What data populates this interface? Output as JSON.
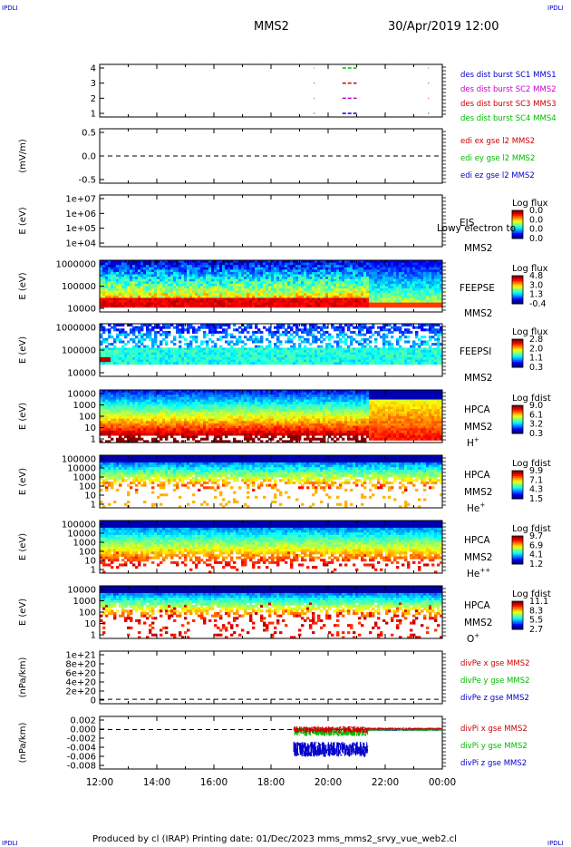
{
  "corner_labels": {
    "top_left": "IPDLI",
    "top_right": "IPDLI",
    "bottom_left": "IPDLI",
    "bottom_right": "IPDLI"
  },
  "header": {
    "mission": "MMS2",
    "datetime": "30/Apr/2019 12:00"
  },
  "footer": {
    "text": "Produced by cl (IRAP)    Printing date: 01/Dec/2023    mms_mms2_srvy_vue_web2.cl"
  },
  "time_axis": {
    "ticks": [
      "12:00",
      "14:00",
      "16:00",
      "18:00",
      "20:00",
      "22:00",
      "00:00"
    ]
  },
  "colors": {
    "blue": "#0000cc",
    "magenta": "#cc00cc",
    "red": "#cc0000",
    "green": "#00bb00"
  },
  "chart_data": [
    {
      "type": "line",
      "title": "des dist burst",
      "ylim": [
        0.5,
        4.5
      ],
      "yticks": [
        "4",
        "3",
        "2",
        "1"
      ],
      "legend": [
        {
          "text": "des dist burst SC1 MMS1",
          "color": "#0000cc"
        },
        {
          "text": "des dist burst SC2 MMS2",
          "color": "#cc00cc"
        },
        {
          "text": "des dist burst SC3 MMS3",
          "color": "#cc0000"
        },
        {
          "text": "des dist burst SC4 MMS4",
          "color": "#00bb00"
        }
      ],
      "series": [
        {
          "name": "des dist burst SC1 MMS1",
          "level": 1,
          "intervals": [
            [
              20.5,
              21.0
            ]
          ]
        },
        {
          "name": "des dist burst SC2 MMS2",
          "level": 2,
          "intervals": [
            [
              20.5,
              21.0
            ]
          ]
        },
        {
          "name": "des dist burst SC3 MMS3",
          "level": 3,
          "intervals": [
            [
              20.5,
              21.0
            ]
          ]
        },
        {
          "name": "des dist burst SC4 MMS4",
          "level": 4,
          "intervals": [
            [
              20.5,
              21.0
            ]
          ]
        }
      ]
    },
    {
      "type": "line",
      "ylabel": "(mV/m)",
      "ylim": [
        -1,
        1
      ],
      "yticks": [
        "0.5",
        "0.0",
        "-0.5"
      ],
      "legend": [
        {
          "text": "edi ex gse l2 MMS2",
          "color": "#cc0000"
        },
        {
          "text": "edi ey gse l2 MMS2",
          "color": "#00bb00"
        },
        {
          "text": "edi ez gse l2 MMS2",
          "color": "#0000cc"
        }
      ]
    },
    {
      "type": "heatmap",
      "ylabel": "E (eV)",
      "yticks": [
        "1e+07",
        "1e+06",
        "1e+05",
        "1e+04"
      ],
      "instrument": [
        "EIS",
        "MMS2"
      ],
      "overlay": "Lowy electron to",
      "colorbar": {
        "title": "Log flux",
        "ticks": [
          "0.0",
          "0.0",
          "0.0",
          "0.0"
        ]
      }
    },
    {
      "type": "heatmap",
      "ylabel": "E (eV)",
      "yticks": [
        "1000000",
        "100000",
        "10000"
      ],
      "instrument": [
        "FEEPSE",
        "MMS2"
      ],
      "colorbar": {
        "title": "Log flux",
        "ticks": [
          "4.8",
          "3.0",
          "1.3",
          "-0.4"
        ]
      }
    },
    {
      "type": "heatmap",
      "ylabel": "E (eV)",
      "yticks": [
        "1000000",
        "100000",
        "10000"
      ],
      "instrument": [
        "FEEPSI",
        "MMS2"
      ],
      "colorbar": {
        "title": "Log flux",
        "ticks": [
          "2.8",
          "2.0",
          "1.1",
          "0.3"
        ]
      }
    },
    {
      "type": "heatmap",
      "ylabel": "E (eV)",
      "yticks": [
        "10000",
        "1000",
        "100",
        "10",
        "1"
      ],
      "instrument": [
        "HPCA",
        "MMS2"
      ],
      "species": {
        "base": "H",
        "sup": "+"
      },
      "colorbar": {
        "title": "Log fdist",
        "ticks": [
          "9.0",
          "6.1",
          "3.2",
          "0.3"
        ]
      }
    },
    {
      "type": "heatmap",
      "ylabel": "E (eV)",
      "yticks": [
        "100000",
        "10000",
        "1000",
        "100",
        "10",
        "1"
      ],
      "instrument": [
        "HPCA",
        "MMS2"
      ],
      "species": {
        "base": "He",
        "sup": "+"
      },
      "colorbar": {
        "title": "Log fdist",
        "ticks": [
          "9.9",
          "7.1",
          "4.3",
          "1.5"
        ]
      }
    },
    {
      "type": "heatmap",
      "ylabel": "E (eV)",
      "yticks": [
        "100000",
        "10000",
        "1000",
        "100",
        "10",
        "1"
      ],
      "instrument": [
        "HPCA",
        "MMS2"
      ],
      "species": {
        "base": "He",
        "sup": "++"
      },
      "colorbar": {
        "title": "Log fdist",
        "ticks": [
          "9.7",
          "6.9",
          "4.1",
          "1.2"
        ]
      }
    },
    {
      "type": "heatmap",
      "ylabel": "E (eV)",
      "yticks": [
        "10000",
        "1000",
        "100",
        "10",
        "1"
      ],
      "instrument": [
        "HPCA",
        "MMS2"
      ],
      "species": {
        "base": "O",
        "sup": "+"
      },
      "colorbar": {
        "title": "Log fdist",
        "ticks": [
          "11.1",
          "8.3",
          "5.5",
          "2.7"
        ]
      }
    },
    {
      "type": "line",
      "ylabel": "(nPa/km)",
      "ylim": [
        -1e+20,
        1.1e+21
      ],
      "yticks": [
        "1e+21",
        "8e+20",
        "6e+20",
        "4e+20",
        "2e+20",
        "0"
      ],
      "legend": [
        {
          "text": "divPe x gse MMS2",
          "color": "#cc0000"
        },
        {
          "text": "divPe y gse MMS2",
          "color": "#00bb00"
        },
        {
          "text": "divPe z gse MMS2",
          "color": "#0000cc"
        }
      ]
    },
    {
      "type": "line",
      "ylabel": "(nPa/km)",
      "ylim": [
        -0.009,
        0.003
      ],
      "yticks": [
        "0.002",
        "0.000",
        "-0.002",
        "-0.004",
        "-0.006",
        "-0.008"
      ],
      "legend": [
        {
          "text": "divPi x gse MMS2",
          "color": "#cc0000"
        },
        {
          "text": "divPi y gse MMS2",
          "color": "#00bb00"
        },
        {
          "text": "divPi z gse MMS2",
          "color": "#0000cc"
        }
      ],
      "series": [
        {
          "name": "divPi x gse MMS2",
          "x_range": [
            18.8,
            24.0
          ],
          "center_before": 0.0,
          "spread_before": 0.0015,
          "center_after": 0.0002,
          "spread_after": 0.0005
        },
        {
          "name": "divPi y gse MMS2",
          "x_range": [
            18.8,
            24.0
          ],
          "center_before": -0.0005,
          "spread_before": 0.002,
          "center_after": 0.0,
          "spread_after": 0.0006
        },
        {
          "name": "divPi z gse MMS2",
          "x_range": [
            18.8,
            24.0
          ],
          "center_before": -0.0045,
          "spread_before": 0.0035,
          "center_after": 0.0,
          "spread_after": 0.0006
        }
      ]
    }
  ]
}
